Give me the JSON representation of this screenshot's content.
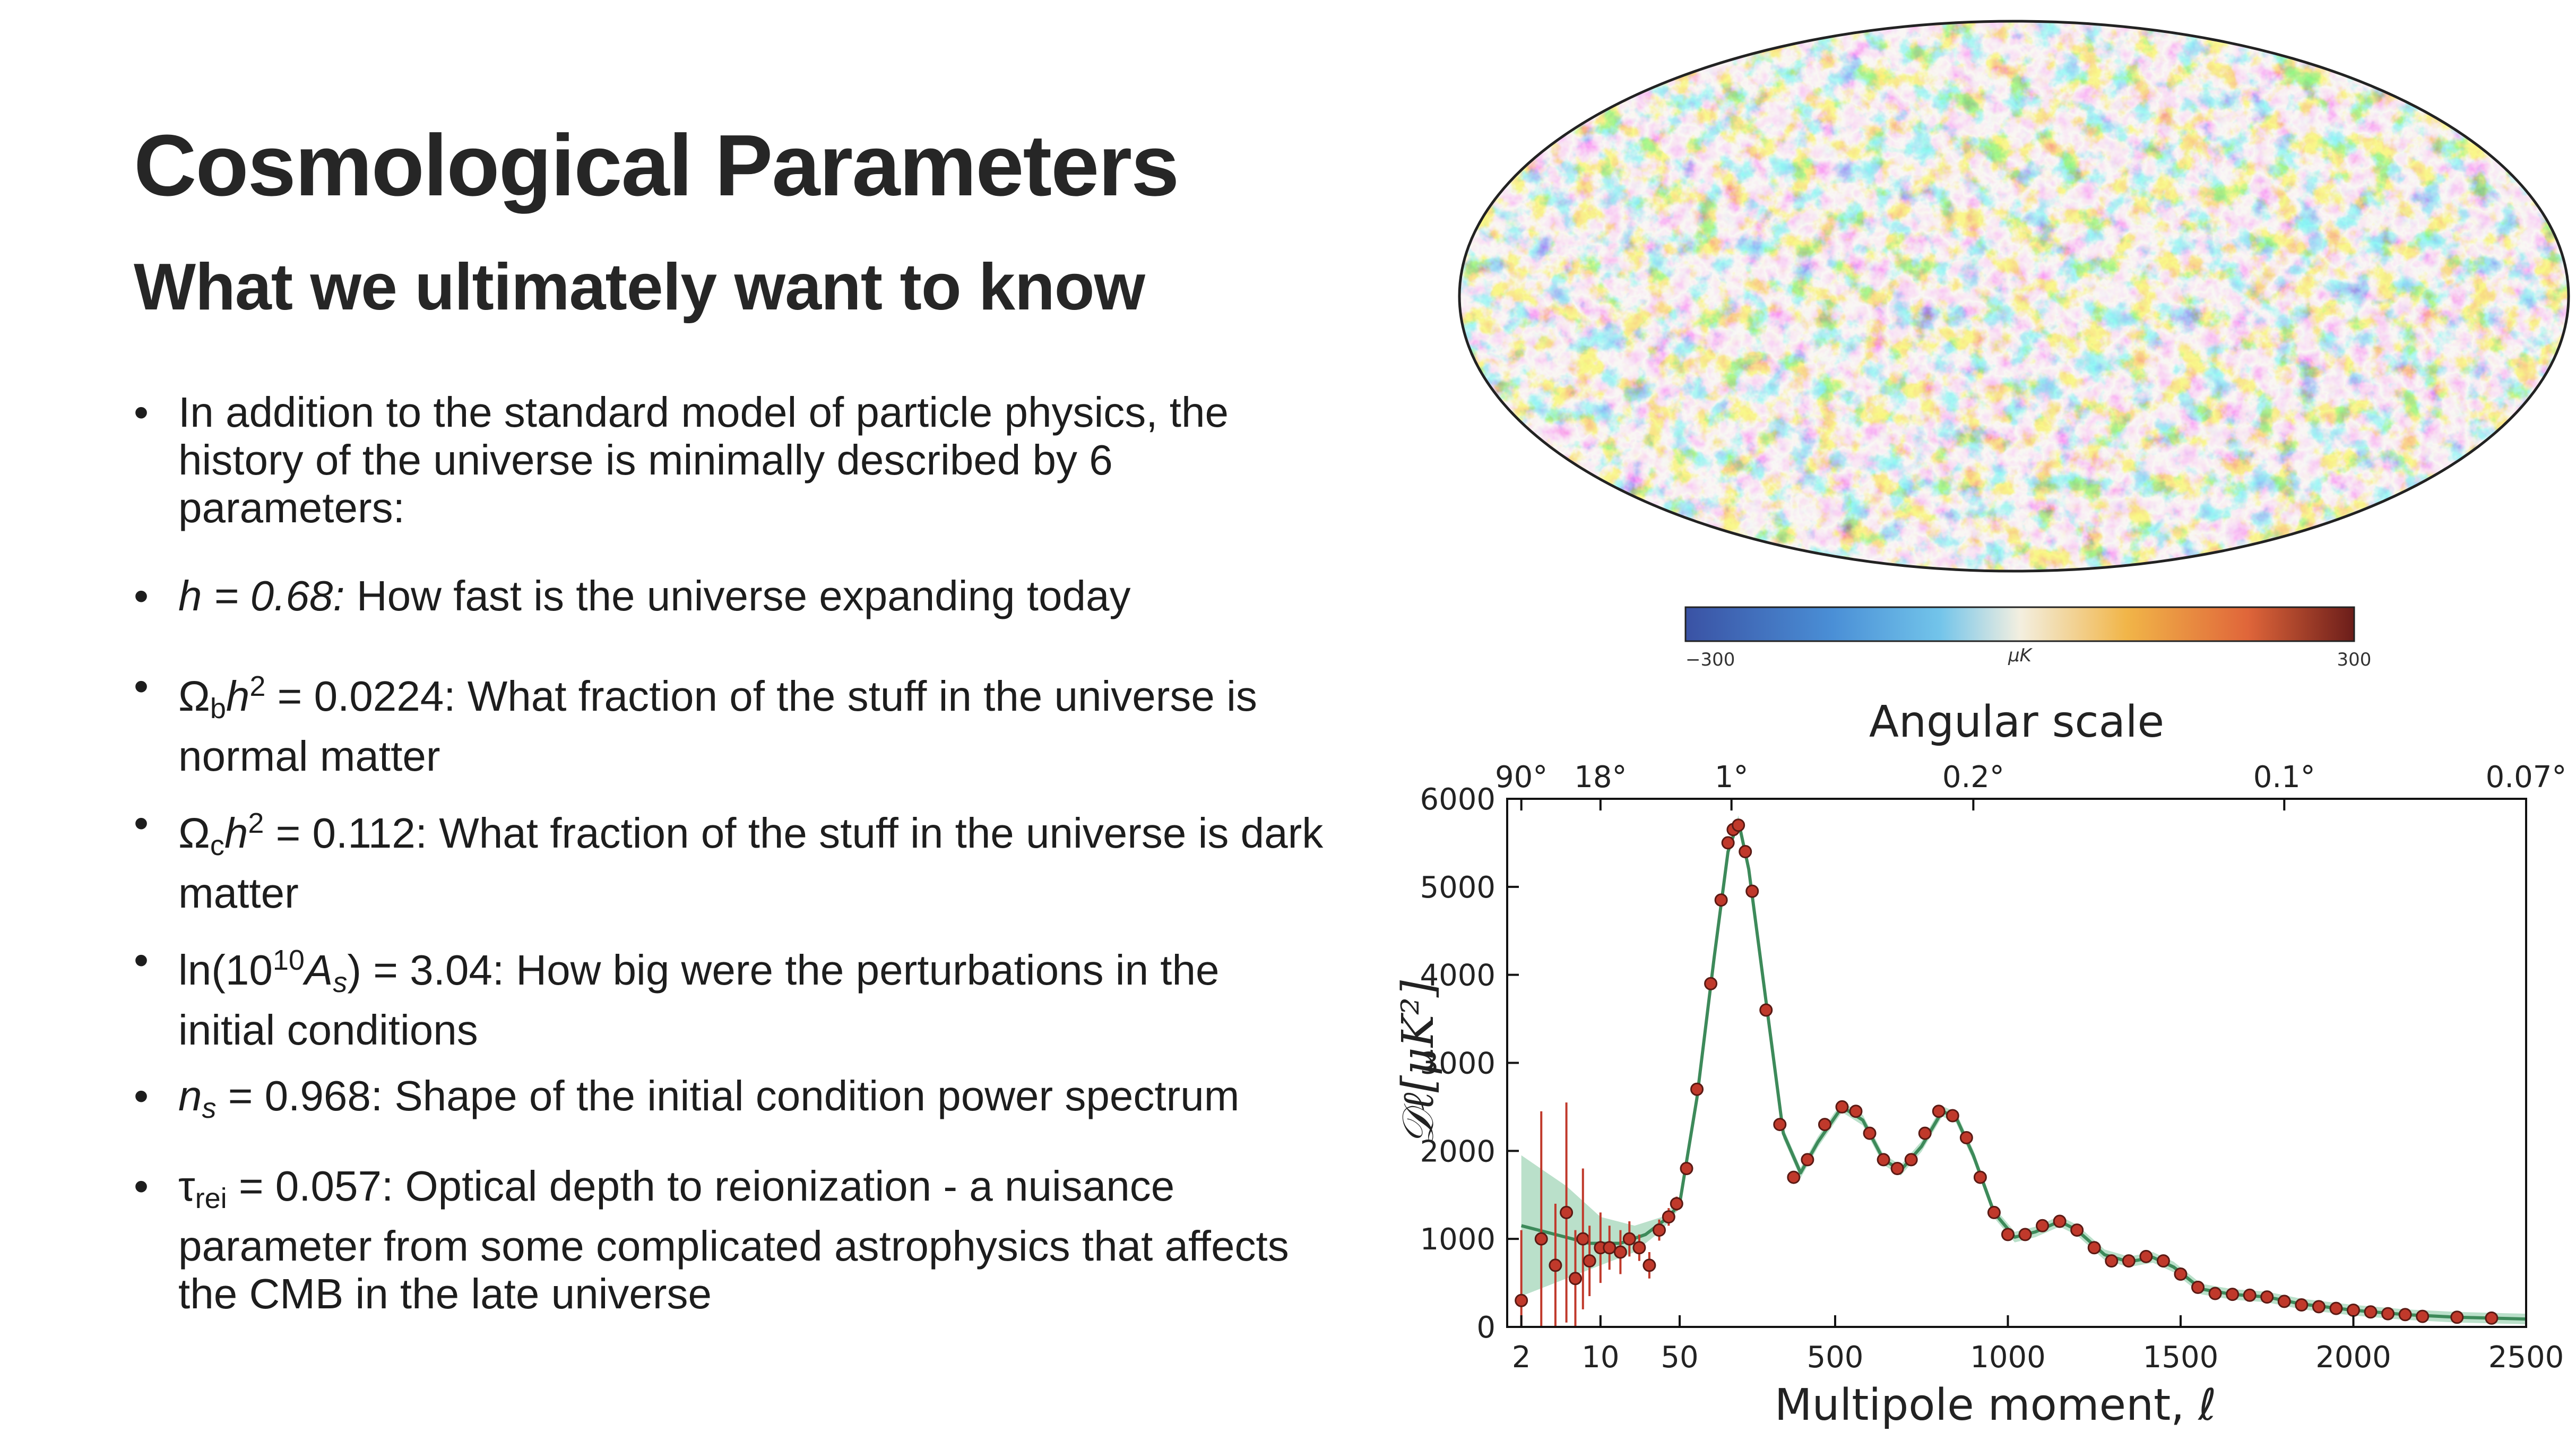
{
  "slide": {
    "title": "Cosmological Parameters",
    "subtitle": "What we ultimately want to know"
  },
  "bullets": {
    "intro": "In addition to the standard model of particle physics, the history of the universe is minimally described by 6 parameters:",
    "h": {
      "symbol": "h = 0.68:",
      "text": " How fast is the universe expanding today"
    },
    "omega_b": {
      "base": "Ω",
      "sub": "b",
      "h": "h",
      "sup": "2",
      "text": " = 0.0224: What fraction of the stuff in the universe is normal matter"
    },
    "omega_c": {
      "base": "Ω",
      "sub": "c",
      "h": "h",
      "sup": "2",
      "text": " = 0.112: What fraction of the stuff in the universe is dark matter"
    },
    "amplitude": {
      "pre": "ln(10",
      "sup": "10",
      "A": "A",
      "sub": "s",
      "text": ") = 3.04: How big were the perturbations in the initial conditions"
    },
    "n_s": {
      "n": "n",
      "sub": "s",
      "text": " = 0.968: Shape of the initial condition power spectrum"
    },
    "tau": {
      "tau": "τ",
      "sub": "rei",
      "text": " = 0.057: Optical depth to reionization - a nuisance parameter from some complicated astrophysics that affects the CMB in the late universe"
    }
  },
  "colorbar": {
    "min_label": "−300",
    "max_label": "300",
    "unit": "μK",
    "colors": [
      "#3a52a4",
      "#4a8fd6",
      "#72c4ea",
      "#f3efe0",
      "#f1b548",
      "#e0663a",
      "#6b1d1a"
    ]
  },
  "chart_data": {
    "type": "scatter",
    "top_xlabel": "Angular scale",
    "top_ticks": [
      "90°",
      "18°",
      "1°",
      "0.2°",
      "0.1°",
      "0.07°"
    ],
    "top_tick_ell": [
      2,
      10,
      200,
      900,
      1800,
      2500
    ],
    "xlabel": "Multipole moment, ℓ",
    "ylabel": "𝒟ℓ[μK²]",
    "x_ticks": [
      2,
      10,
      50,
      500,
      1000,
      1500,
      2000,
      2500
    ],
    "y_ticks": [
      0,
      1000,
      2000,
      3000,
      4000,
      5000,
      6000
    ],
    "ylim": [
      0,
      6000
    ],
    "xlim": [
      1.5,
      2500
    ],
    "x_scale": "log below ℓ=50, linear above",
    "colors": {
      "points": "#c0392b",
      "model": "#3d8a5a",
      "band": "#a9d8bd"
    },
    "low_ell_points": [
      {
        "ell": 2,
        "value": 300,
        "err": 800
      },
      {
        "ell": 3,
        "value": 1000,
        "err": 1450
      },
      {
        "ell": 4,
        "value": 700,
        "err": 700
      },
      {
        "ell": 5,
        "value": 1300,
        "err": 1250
      },
      {
        "ell": 6,
        "value": 550,
        "err": 550
      },
      {
        "ell": 7,
        "value": 1000,
        "err": 800
      },
      {
        "ell": 8,
        "value": 750,
        "err": 400
      },
      {
        "ell": 10,
        "value": 900,
        "err": 400
      },
      {
        "ell": 12,
        "value": 900,
        "err": 250
      },
      {
        "ell": 15,
        "value": 850,
        "err": 250
      },
      {
        "ell": 18,
        "value": 1000,
        "err": 200
      },
      {
        "ell": 22,
        "value": 900,
        "err": 150
      },
      {
        "ell": 27,
        "value": 700,
        "err": 150
      },
      {
        "ell": 33,
        "value": 1100,
        "err": 120
      },
      {
        "ell": 40,
        "value": 1250,
        "err": 100
      },
      {
        "ell": 47,
        "value": 1400,
        "err": 80
      }
    ],
    "high_ell_points": [
      {
        "ell": 70,
        "value": 1800
      },
      {
        "ell": 100,
        "value": 2700
      },
      {
        "ell": 140,
        "value": 3900
      },
      {
        "ell": 170,
        "value": 4850
      },
      {
        "ell": 190,
        "value": 5500
      },
      {
        "ell": 205,
        "value": 5650
      },
      {
        "ell": 220,
        "value": 5700
      },
      {
        "ell": 240,
        "value": 5400
      },
      {
        "ell": 260,
        "value": 4950
      },
      {
        "ell": 300,
        "value": 3600
      },
      {
        "ell": 340,
        "value": 2300
      },
      {
        "ell": 380,
        "value": 1700
      },
      {
        "ell": 420,
        "value": 1900
      },
      {
        "ell": 470,
        "value": 2300
      },
      {
        "ell": 520,
        "value": 2500
      },
      {
        "ell": 560,
        "value": 2450
      },
      {
        "ell": 600,
        "value": 2200
      },
      {
        "ell": 640,
        "value": 1900
      },
      {
        "ell": 680,
        "value": 1800
      },
      {
        "ell": 720,
        "value": 1900
      },
      {
        "ell": 760,
        "value": 2200
      },
      {
        "ell": 800,
        "value": 2450
      },
      {
        "ell": 840,
        "value": 2400
      },
      {
        "ell": 880,
        "value": 2150
      },
      {
        "ell": 920,
        "value": 1700
      },
      {
        "ell": 960,
        "value": 1300
      },
      {
        "ell": 1000,
        "value": 1050
      },
      {
        "ell": 1050,
        "value": 1050
      },
      {
        "ell": 1100,
        "value": 1150
      },
      {
        "ell": 1150,
        "value": 1200
      },
      {
        "ell": 1200,
        "value": 1100
      },
      {
        "ell": 1250,
        "value": 900
      },
      {
        "ell": 1300,
        "value": 750
      },
      {
        "ell": 1350,
        "value": 750
      },
      {
        "ell": 1400,
        "value": 800
      },
      {
        "ell": 1450,
        "value": 750
      },
      {
        "ell": 1500,
        "value": 600
      },
      {
        "ell": 1550,
        "value": 450
      },
      {
        "ell": 1600,
        "value": 380
      },
      {
        "ell": 1650,
        "value": 370
      },
      {
        "ell": 1700,
        "value": 360
      },
      {
        "ell": 1750,
        "value": 340
      },
      {
        "ell": 1800,
        "value": 290
      },
      {
        "ell": 1850,
        "value": 250
      },
      {
        "ell": 1900,
        "value": 230
      },
      {
        "ell": 1950,
        "value": 210
      },
      {
        "ell": 2000,
        "value": 190
      },
      {
        "ell": 2050,
        "value": 170
      },
      {
        "ell": 2100,
        "value": 150
      },
      {
        "ell": 2150,
        "value": 140
      },
      {
        "ell": 2200,
        "value": 120
      },
      {
        "ell": 2300,
        "value": 110
      },
      {
        "ell": 2400,
        "value": 100
      }
    ],
    "model_curve": [
      [
        2,
        1150
      ],
      [
        4,
        1050
      ],
      [
        8,
        950
      ],
      [
        15,
        950
      ],
      [
        25,
        1050
      ],
      [
        40,
        1250
      ],
      [
        50,
        1400
      ],
      [
        100,
        2600
      ],
      [
        150,
        4200
      ],
      [
        190,
        5400
      ],
      [
        220,
        5750
      ],
      [
        250,
        5200
      ],
      [
        300,
        3700
      ],
      [
        350,
        2200
      ],
      [
        400,
        1750
      ],
      [
        450,
        2100
      ],
      [
        520,
        2500
      ],
      [
        580,
        2350
      ],
      [
        640,
        1900
      ],
      [
        690,
        1780
      ],
      [
        750,
        2050
      ],
      [
        810,
        2450
      ],
      [
        850,
        2380
      ],
      [
        900,
        1950
      ],
      [
        960,
        1300
      ],
      [
        1020,
        1020
      ],
      [
        1080,
        1080
      ],
      [
        1150,
        1200
      ],
      [
        1200,
        1100
      ],
      [
        1280,
        820
      ],
      [
        1350,
        740
      ],
      [
        1420,
        790
      ],
      [
        1480,
        680
      ],
      [
        1560,
        430
      ],
      [
        1650,
        370
      ],
      [
        1750,
        340
      ],
      [
        1850,
        260
      ],
      [
        2000,
        190
      ],
      [
        2150,
        140
      ],
      [
        2300,
        110
      ],
      [
        2500,
        90
      ]
    ],
    "band_upper_low_ell": [
      [
        2,
        1950
      ],
      [
        5,
        1600
      ],
      [
        10,
        1250
      ],
      [
        20,
        1150
      ],
      [
        35,
        1250
      ],
      [
        50,
        1450
      ]
    ],
    "band_lower_low_ell": [
      [
        2,
        350
      ],
      [
        5,
        550
      ],
      [
        10,
        700
      ],
      [
        20,
        850
      ],
      [
        35,
        1100
      ],
      [
        50,
        1350
      ]
    ]
  }
}
